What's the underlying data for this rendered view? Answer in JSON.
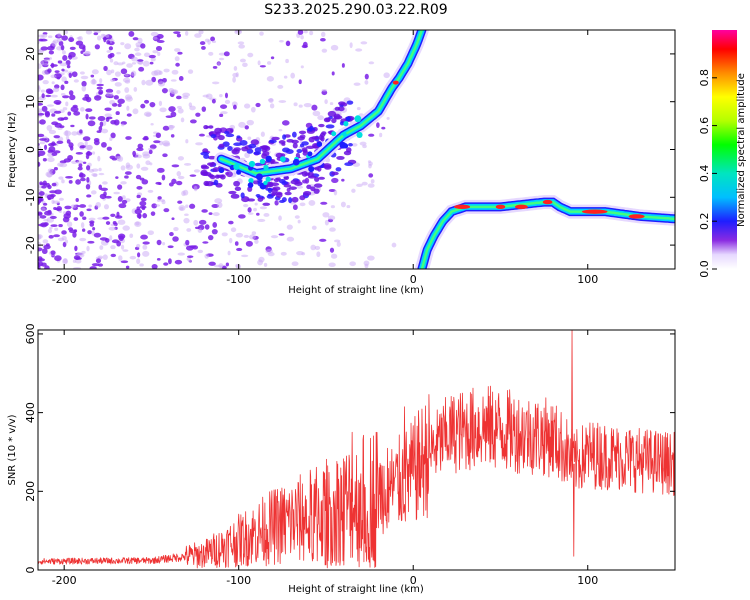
{
  "title": "S233.2025.290.03.22.R09",
  "colors": {
    "snr_line": "#ee3333",
    "spectrogram_scatter": "#7a1fe8",
    "frame": "#000000"
  },
  "chart_data": [
    {
      "type": "heatmap",
      "name": "spectrogram",
      "xlabel": "Height of straight line (km)",
      "ylabel": "Frequency (Hz)",
      "xlim": [
        -215,
        150
      ],
      "ylim": [
        -25,
        25
      ],
      "xticks": [
        -200,
        -100,
        0,
        100
      ],
      "yticks": [
        -20,
        -10,
        0,
        10,
        20
      ],
      "colorbar": {
        "label": "Normalized spectral amplitude",
        "range": [
          0,
          1
        ],
        "ticks": [
          "0.0",
          "0.2",
          "0.4",
          "0.6",
          "0.8"
        ],
        "tick_values": [
          0.0,
          0.2,
          0.4,
          0.6,
          0.8
        ]
      },
      "traces": [
        {
          "name": "upper branch",
          "points": [
            [
              -110,
              -2
            ],
            [
              -90,
              -5
            ],
            [
              -70,
              -4
            ],
            [
              -55,
              -2
            ],
            [
              -40,
              3
            ],
            [
              -30,
              5
            ],
            [
              -20,
              8
            ],
            [
              -12,
              13
            ],
            [
              -8,
              15
            ],
            [
              -3,
              18
            ],
            [
              2,
              22
            ],
            [
              5,
              25
            ]
          ]
        },
        {
          "name": "lower branch",
          "points": [
            [
              5,
              -25
            ],
            [
              8,
              -21
            ],
            [
              12,
              -18
            ],
            [
              17,
              -15
            ],
            [
              22,
              -13
            ],
            [
              30,
              -12
            ],
            [
              50,
              -12
            ],
            [
              75,
              -11
            ],
            [
              80,
              -11
            ],
            [
              84,
              -12
            ],
            [
              90,
              -13
            ],
            [
              110,
              -13
            ],
            [
              130,
              -14
            ],
            [
              150,
              -14.5
            ]
          ]
        }
      ],
      "scatter_region": {
        "x": [
          -215,
          -40
        ],
        "y": [
          -25,
          25
        ]
      }
    },
    {
      "type": "line",
      "name": "snr",
      "xlabel": "Height of straight line (km)",
      "ylabel": "SNR (10 * v/v)",
      "xlim": [
        -215,
        150
      ],
      "ylim": [
        0,
        610
      ],
      "xticks": [
        -200,
        -100,
        0,
        100
      ],
      "yticks": [
        0,
        200,
        400,
        600
      ],
      "envelope": [
        [
          -215,
          22
        ],
        [
          -150,
          24
        ],
        [
          -120,
          40
        ],
        [
          -100,
          75
        ],
        [
          -80,
          110
        ],
        [
          -60,
          135
        ],
        [
          -40,
          165
        ],
        [
          -25,
          190
        ],
        [
          -10,
          215
        ],
        [
          0,
          248
        ],
        [
          10,
          300
        ],
        [
          20,
          345
        ],
        [
          40,
          365
        ],
        [
          60,
          350
        ],
        [
          80,
          335
        ],
        [
          88,
          300
        ],
        [
          92,
          270
        ],
        [
          100,
          295
        ],
        [
          120,
          285
        ],
        [
          150,
          270
        ]
      ],
      "features": [
        {
          "x": -96,
          "value": 135
        },
        {
          "x": -85,
          "value": 110
        },
        {
          "x": -50,
          "value": 230
        },
        {
          "x": -35,
          "value": 350
        },
        {
          "x": -5,
          "value": 415
        },
        {
          "x": 91,
          "value": 610
        },
        {
          "x": 92,
          "value": 35
        }
      ]
    }
  ]
}
